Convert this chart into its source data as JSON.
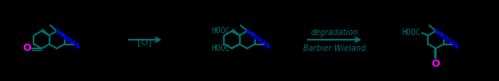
{
  "bg_color": "#000000",
  "teal": "#007070",
  "pink": "#ff00ff",
  "blue": "#0000cc",
  "reaction1_label": "[O]",
  "reaction2_line1": "Barbier Wieland",
  "reaction2_line2": "degradation",
  "figsize": [
    6.24,
    1.02
  ],
  "dpi": 100
}
